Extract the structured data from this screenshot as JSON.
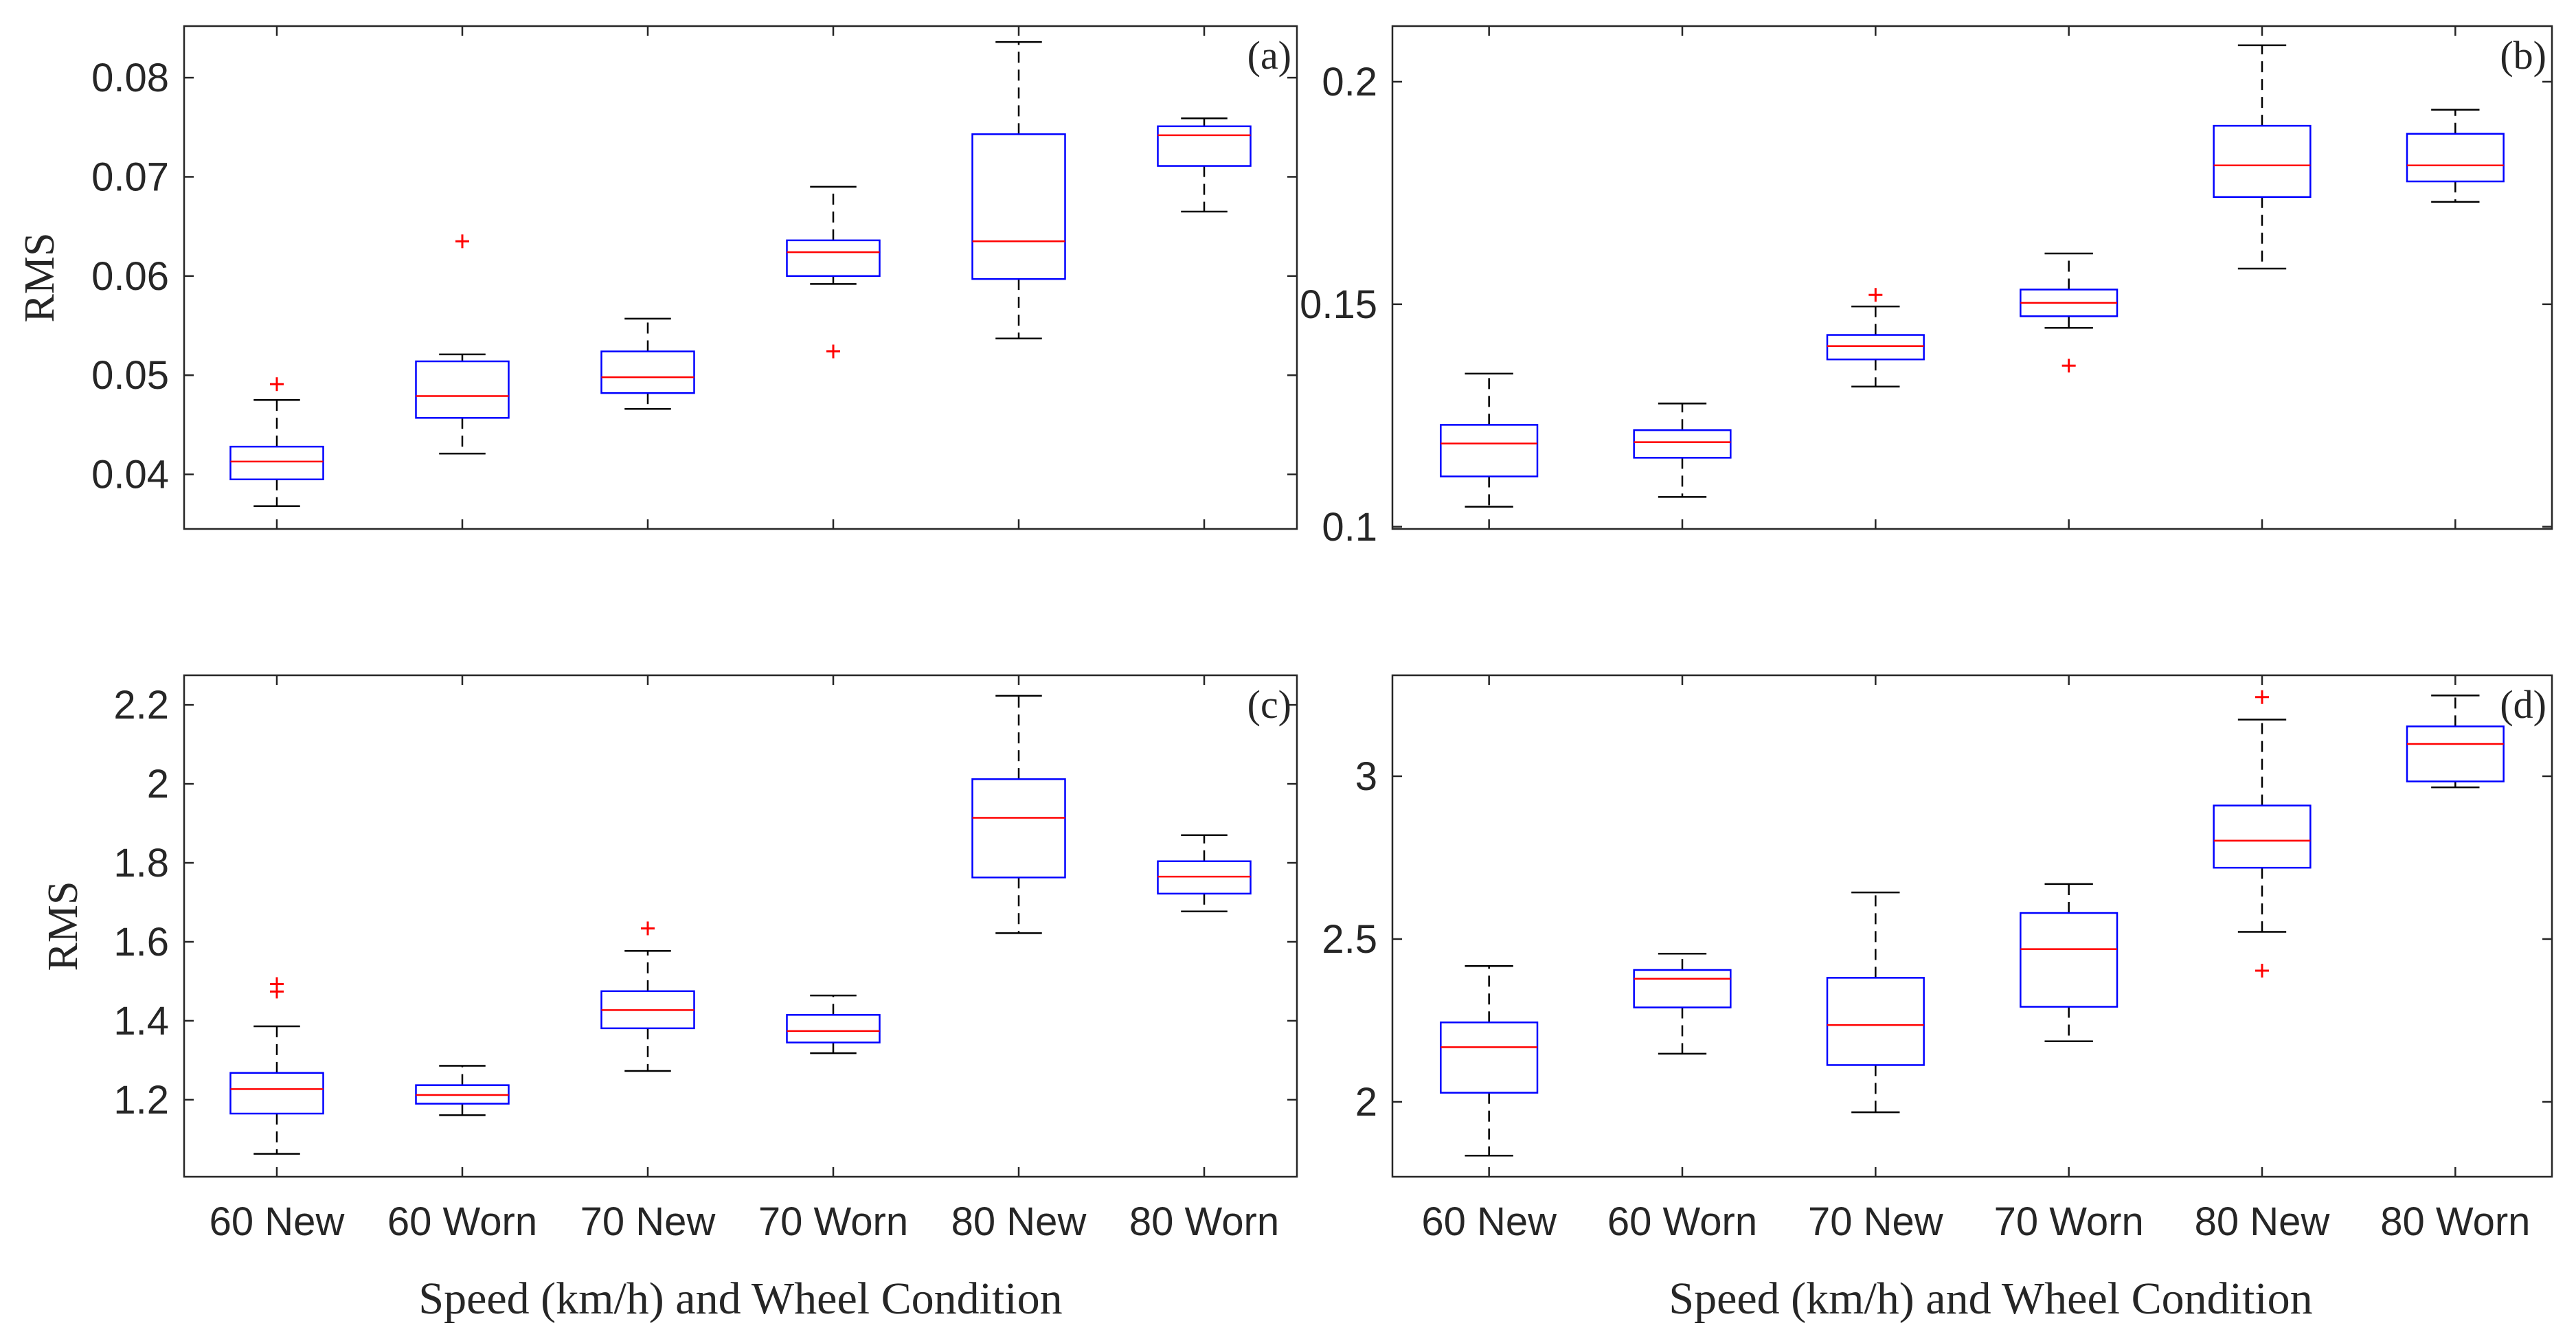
{
  "figure": {
    "x_label": "Speed (km/h) and Wheel Condition",
    "categories": [
      "60 New",
      "60 Worn",
      "70 New",
      "70 Worn",
      "80 New",
      "80 Worn"
    ]
  },
  "colors": {
    "box": "#0000ff",
    "median": "#ff0000",
    "whisker": "#000000",
    "outlier": "#ff0000",
    "axis": "#262626"
  },
  "chart_data": [
    {
      "panel": "a",
      "label": "(a)",
      "type": "box",
      "ylabel": "RMS",
      "xlabel": "",
      "ylim": [
        0.0345,
        0.0852
      ],
      "yticks": [
        0.04,
        0.05,
        0.06,
        0.07,
        0.08
      ],
      "ytick_labels": [
        "0.04",
        "0.05",
        "0.06",
        "0.07",
        "0.08"
      ],
      "boxes": [
        {
          "category": "60 New",
          "min": 0.0368,
          "q1": 0.0395,
          "median": 0.0413,
          "q3": 0.0428,
          "max": 0.0475,
          "outliers": [
            0.0491
          ]
        },
        {
          "category": "60 Worn",
          "min": 0.0421,
          "q1": 0.0457,
          "median": 0.0479,
          "q3": 0.0514,
          "max": 0.0521,
          "outliers": [
            0.0635
          ]
        },
        {
          "category": "70 New",
          "min": 0.0466,
          "q1": 0.0482,
          "median": 0.0498,
          "q3": 0.0524,
          "max": 0.0557,
          "outliers": []
        },
        {
          "category": "70 Worn",
          "min": 0.0592,
          "q1": 0.06,
          "median": 0.0624,
          "q3": 0.0636,
          "max": 0.069,
          "outliers": [
            0.0524
          ]
        },
        {
          "category": "80 New",
          "min": 0.0537,
          "q1": 0.0597,
          "median": 0.0635,
          "q3": 0.0743,
          "max": 0.0836,
          "outliers": []
        },
        {
          "category": "80 Worn",
          "min": 0.0665,
          "q1": 0.0711,
          "median": 0.0742,
          "q3": 0.0751,
          "max": 0.0759,
          "outliers": []
        }
      ]
    },
    {
      "panel": "b",
      "label": "(b)",
      "type": "box",
      "ylabel": "",
      "xlabel": "",
      "ylim": [
        0.0995,
        0.2125
      ],
      "yticks": [
        0.1,
        0.15,
        0.2
      ],
      "ytick_labels": [
        "0.1",
        "0.15",
        "0.2"
      ],
      "boxes": [
        {
          "category": "60 New",
          "min": 0.1045,
          "q1": 0.1113,
          "median": 0.1187,
          "q3": 0.1229,
          "max": 0.1344,
          "outliers": []
        },
        {
          "category": "60 Worn",
          "min": 0.1067,
          "q1": 0.1155,
          "median": 0.119,
          "q3": 0.1217,
          "max": 0.1277,
          "outliers": []
        },
        {
          "category": "70 New",
          "min": 0.1315,
          "q1": 0.1376,
          "median": 0.1406,
          "q3": 0.1431,
          "max": 0.1495,
          "outliers": [
            0.1521
          ]
        },
        {
          "category": "70 Worn",
          "min": 0.1447,
          "q1": 0.1473,
          "median": 0.1503,
          "q3": 0.1533,
          "max": 0.1614,
          "outliers": [
            0.1362
          ]
        },
        {
          "category": "80 New",
          "min": 0.158,
          "q1": 0.1741,
          "median": 0.1812,
          "q3": 0.1901,
          "max": 0.2082,
          "outliers": []
        },
        {
          "category": "80 Worn",
          "min": 0.173,
          "q1": 0.1776,
          "median": 0.1812,
          "q3": 0.1883,
          "max": 0.1937,
          "outliers": []
        }
      ]
    },
    {
      "panel": "c",
      "label": "(c)",
      "type": "box",
      "ylabel": "RMS",
      "xlabel": "Speed (km/h) and Wheel Condition",
      "ylim": [
        1.005,
        2.275
      ],
      "yticks": [
        1.2,
        1.4,
        1.6,
        1.8,
        2.0,
        2.2
      ],
      "ytick_labels": [
        "1.2",
        "1.4",
        "1.6",
        "1.8",
        "2",
        "2.2"
      ],
      "boxes": [
        {
          "category": "60 New",
          "min": 1.063,
          "q1": 1.165,
          "median": 1.227,
          "q3": 1.268,
          "max": 1.386,
          "outliers": [
            1.474,
            1.493
          ]
        },
        {
          "category": "60 Worn",
          "min": 1.161,
          "q1": 1.19,
          "median": 1.212,
          "q3": 1.237,
          "max": 1.286,
          "outliers": []
        },
        {
          "category": "70 New",
          "min": 1.273,
          "q1": 1.381,
          "median": 1.427,
          "q3": 1.475,
          "max": 1.577,
          "outliers": [
            1.634
          ]
        },
        {
          "category": "70 Worn",
          "min": 1.318,
          "q1": 1.345,
          "median": 1.374,
          "q3": 1.415,
          "max": 1.464,
          "outliers": []
        },
        {
          "category": "80 New",
          "min": 1.622,
          "q1": 1.763,
          "median": 1.914,
          "q3": 2.012,
          "max": 2.223,
          "outliers": []
        },
        {
          "category": "80 Worn",
          "min": 1.677,
          "q1": 1.722,
          "median": 1.765,
          "q3": 1.804,
          "max": 1.87,
          "outliers": []
        }
      ]
    },
    {
      "panel": "d",
      "label": "(d)",
      "type": "box",
      "ylabel": "",
      "xlabel": "Speed (km/h) and Wheel Condition",
      "ylim": [
        1.77,
        3.31
      ],
      "yticks": [
        2.0,
        2.5,
        3.0
      ],
      "ytick_labels": [
        "2",
        "2.5",
        "3"
      ],
      "boxes": [
        {
          "category": "60 New",
          "min": 1.835,
          "q1": 2.028,
          "median": 2.168,
          "q3": 2.244,
          "max": 2.417,
          "outliers": []
        },
        {
          "category": "60 Worn",
          "min": 2.148,
          "q1": 2.29,
          "median": 2.378,
          "q3": 2.405,
          "max": 2.455,
          "outliers": []
        },
        {
          "category": "70 New",
          "min": 1.968,
          "q1": 2.113,
          "median": 2.236,
          "q3": 2.381,
          "max": 2.643,
          "outliers": []
        },
        {
          "category": "70 Worn",
          "min": 2.186,
          "q1": 2.292,
          "median": 2.469,
          "q3": 2.58,
          "max": 2.669,
          "outliers": []
        },
        {
          "category": "80 New",
          "min": 2.522,
          "q1": 2.719,
          "median": 2.802,
          "q3": 2.91,
          "max": 3.174,
          "outliers": [
            3.243,
            2.403
          ]
        },
        {
          "category": "80 Worn",
          "min": 2.966,
          "q1": 2.984,
          "median": 3.099,
          "q3": 3.153,
          "max": 3.248,
          "outliers": []
        }
      ]
    }
  ]
}
